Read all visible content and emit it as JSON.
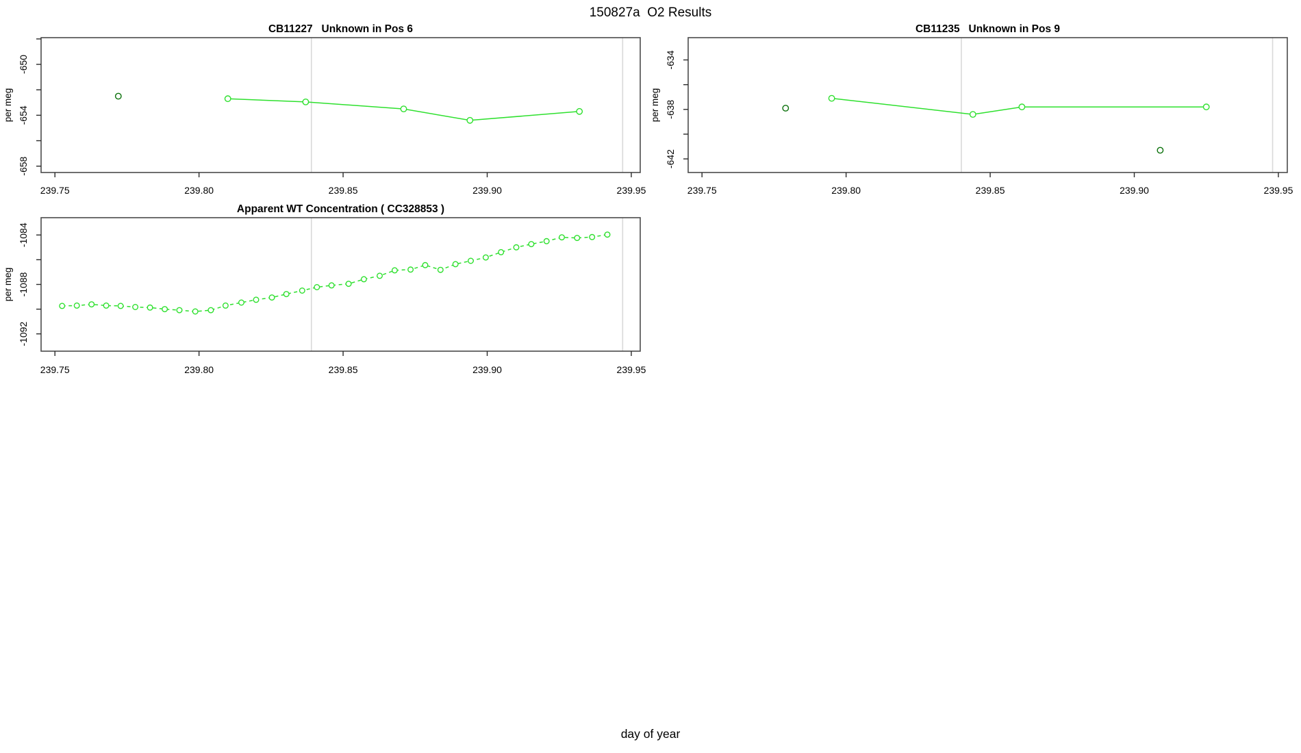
{
  "figure": {
    "title": "150827a  O2 Results",
    "xlabel": "day of year",
    "background": "#ffffff"
  },
  "colors": {
    "run_green": "#2de02d",
    "isolated_dark_green": "#0a700a",
    "gridline": "#d9d9d9",
    "box": "#4a4a4a",
    "tick": "#2a2a2a",
    "text": "#000000"
  },
  "chart_data": [
    {
      "id": "cb11227-pos6",
      "type": "line",
      "title": "CB11227   Unknown in Pos 6",
      "ylabel": "per meg",
      "xlabel": "",
      "xlim": [
        239.7452,
        239.9531
      ],
      "ylim": [
        -658.5,
        -647.9
      ],
      "grid": "vertical-only",
      "legend": "none",
      "x_ticks": [
        {
          "v": 239.75,
          "label": "239.75"
        },
        {
          "v": 239.8,
          "label": "239.80"
        },
        {
          "v": 239.85,
          "label": "239.85"
        },
        {
          "v": 239.9,
          "label": "239.90"
        },
        {
          "v": 239.95,
          "label": "239.95"
        }
      ],
      "y_ticks": [
        {
          "v": -648
        },
        {
          "v": -650,
          "label": "-650"
        },
        {
          "v": -652
        },
        {
          "v": -654,
          "label": "-654"
        },
        {
          "v": -656
        },
        {
          "v": -658,
          "label": "-658"
        }
      ],
      "gridlines_x": [
        239.839,
        239.947
      ],
      "series": [
        {
          "name": "isolated-sample",
          "style": "points",
          "color_key": "isolated_dark_green",
          "points": [
            [
              239.772,
              -652.5
            ]
          ]
        },
        {
          "name": "sample-run",
          "style": "line-points",
          "dashed": false,
          "color_key": "run_green",
          "points": [
            [
              239.81,
              -652.7
            ],
            [
              239.837,
              -652.95
            ],
            [
              239.871,
              -653.5
            ],
            [
              239.894,
              -654.4
            ],
            [
              239.932,
              -653.7
            ]
          ]
        }
      ]
    },
    {
      "id": "cb11235-pos9",
      "type": "line",
      "title": "CB11235   Unknown in Pos 9",
      "ylabel": "per meg",
      "xlabel": "",
      "xlim": [
        239.7452,
        239.9531
      ],
      "ylim": [
        -643.1,
        -632.2
      ],
      "grid": "vertical-only",
      "legend": "none",
      "x_ticks": [
        {
          "v": 239.75,
          "label": "239.75"
        },
        {
          "v": 239.8,
          "label": "239.80"
        },
        {
          "v": 239.85,
          "label": "239.85"
        },
        {
          "v": 239.9,
          "label": "239.90"
        },
        {
          "v": 239.95,
          "label": "239.95"
        }
      ],
      "y_ticks": [
        {
          "v": -634,
          "label": "-634"
        },
        {
          "v": -636
        },
        {
          "v": -638,
          "label": "-638"
        },
        {
          "v": -640
        },
        {
          "v": -642,
          "label": "-642"
        }
      ],
      "gridlines_x": [
        239.84,
        239.948
      ],
      "series": [
        {
          "name": "isolated-samples",
          "style": "points",
          "color_key": "isolated_dark_green",
          "points": [
            [
              239.779,
              -637.9
            ],
            [
              239.909,
              -641.3
            ]
          ]
        },
        {
          "name": "sample-run",
          "style": "line-points",
          "dashed": false,
          "color_key": "run_green",
          "points": [
            [
              239.795,
              -637.1
            ],
            [
              239.844,
              -638.4
            ],
            [
              239.861,
              -637.8
            ],
            [
              239.925,
              -637.8
            ]
          ]
        }
      ]
    },
    {
      "id": "apparent-wt-concentration",
      "type": "line",
      "title": "Apparent WT Concentration ( CC328853 )",
      "ylabel": "per meg",
      "xlabel": "",
      "xlim": [
        239.7452,
        239.9531
      ],
      "ylim": [
        -1093.4,
        -1082.6
      ],
      "grid": "vertical-only",
      "legend": "none",
      "x_ticks": [
        {
          "v": 239.75,
          "label": "239.75"
        },
        {
          "v": 239.8,
          "label": "239.80"
        },
        {
          "v": 239.85,
          "label": "239.85"
        },
        {
          "v": 239.9,
          "label": "239.90"
        },
        {
          "v": 239.95,
          "label": "239.95"
        }
      ],
      "y_ticks": [
        {
          "v": -1084,
          "label": "-1084"
        },
        {
          "v": -1086
        },
        {
          "v": -1088,
          "label": "-1088"
        },
        {
          "v": -1090
        },
        {
          "v": -1092,
          "label": "-1092"
        }
      ],
      "gridlines_x": [
        239.839,
        239.947
      ],
      "series": [
        {
          "name": "wt-concentration-run",
          "style": "line-points",
          "dashed": true,
          "color_key": "run_green",
          "points": [
            [
              239.7525,
              -1089.74
            ],
            [
              239.7576,
              -1089.71
            ],
            [
              239.7627,
              -1089.61
            ],
            [
              239.7678,
              -1089.71
            ],
            [
              239.7728,
              -1089.74
            ],
            [
              239.7779,
              -1089.83
            ],
            [
              239.783,
              -1089.87
            ],
            [
              239.7881,
              -1090.0
            ],
            [
              239.7932,
              -1090.08
            ],
            [
              239.7987,
              -1090.19
            ],
            [
              239.8041,
              -1090.08
            ],
            [
              239.8092,
              -1089.71
            ],
            [
              239.8147,
              -1089.47
            ],
            [
              239.8198,
              -1089.24
            ],
            [
              239.8253,
              -1089.06
            ],
            [
              239.8303,
              -1088.78
            ],
            [
              239.8358,
              -1088.5
            ],
            [
              239.8409,
              -1088.22
            ],
            [
              239.846,
              -1088.08
            ],
            [
              239.8519,
              -1087.95
            ],
            [
              239.8572,
              -1087.58
            ],
            [
              239.8627,
              -1087.3
            ],
            [
              239.8679,
              -1086.86
            ],
            [
              239.8734,
              -1086.8
            ],
            [
              239.8785,
              -1086.44
            ],
            [
              239.8838,
              -1086.82
            ],
            [
              239.889,
              -1086.36
            ],
            [
              239.8943,
              -1086.09
            ],
            [
              239.8995,
              -1085.82
            ],
            [
              239.9048,
              -1085.39
            ],
            [
              239.9101,
              -1085.0
            ],
            [
              239.9153,
              -1084.74
            ],
            [
              239.9206,
              -1084.5
            ],
            [
              239.9259,
              -1084.19
            ],
            [
              239.9312,
              -1084.24
            ],
            [
              239.9364,
              -1084.17
            ],
            [
              239.9417,
              -1083.97
            ]
          ]
        }
      ]
    }
  ]
}
